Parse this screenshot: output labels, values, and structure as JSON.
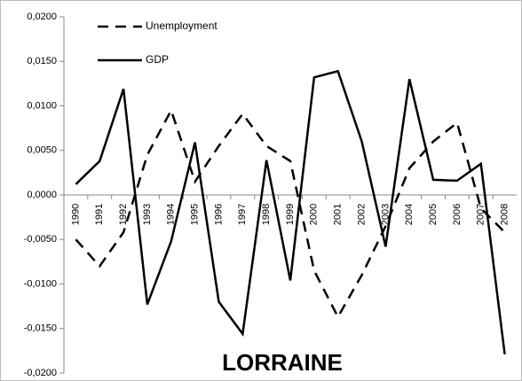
{
  "chart_data": {
    "type": "line",
    "title": "LORRAINE",
    "categories": [
      "1990",
      "1991",
      "1992",
      "1993",
      "1994",
      "1995",
      "1996",
      "1997",
      "1998",
      "1999",
      "2000",
      "2001",
      "2002",
      "2003",
      "2004",
      "2005",
      "2006",
      "2007",
      "2008"
    ],
    "series": [
      {
        "name": "Unemployment",
        "color": "#000000",
        "dash": true,
        "values": [
          -0.005,
          -0.008,
          -0.0042,
          0.0045,
          0.0095,
          0.0015,
          0.0055,
          0.0091,
          0.0055,
          0.0038,
          -0.0085,
          -0.0137,
          -0.009,
          -0.0035,
          0.003,
          0.006,
          0.0081,
          -0.0015,
          -0.0042
        ]
      },
      {
        "name": "GDP",
        "color": "#000000",
        "dash": false,
        "values": [
          0.0012,
          0.0038,
          0.0119,
          -0.0123,
          -0.0052,
          0.0059,
          -0.012,
          -0.0156,
          0.0039,
          -0.0096,
          0.0132,
          0.0139,
          0.006,
          -0.0058,
          0.013,
          0.0017,
          0.0016,
          0.0035,
          -0.0179
        ]
      }
    ],
    "ylim": [
      -0.02,
      0.02
    ],
    "yticks": [
      {
        "value": 0.02,
        "label": "0,0200"
      },
      {
        "value": 0.015,
        "label": "0,0150"
      },
      {
        "value": 0.01,
        "label": "0,0100"
      },
      {
        "value": 0.005,
        "label": "0,0050"
      },
      {
        "value": 0,
        "label": "0,0000"
      },
      {
        "value": -0.005,
        "label": "-0,0050"
      },
      {
        "value": -0.01,
        "label": "-0,0100"
      },
      {
        "value": -0.015,
        "label": "-0,0150"
      },
      {
        "value": -0.02,
        "label": "-0,0200"
      }
    ],
    "legend": "top-left"
  }
}
